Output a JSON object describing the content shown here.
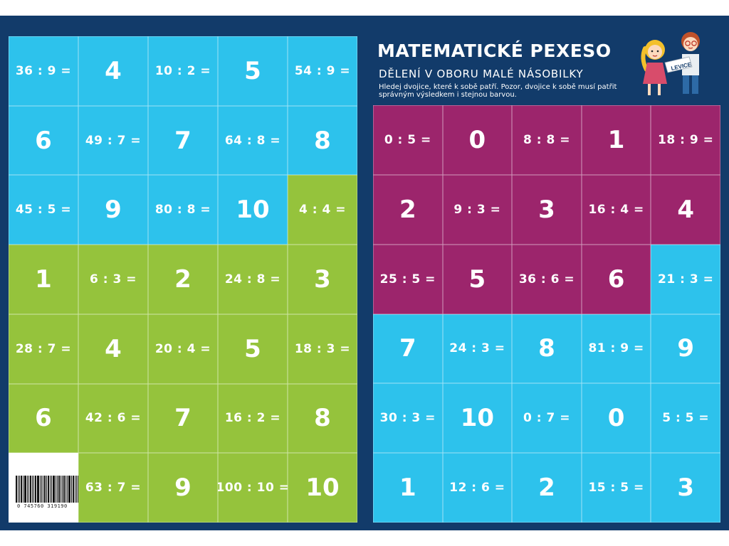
{
  "header": {
    "title": "MATEMATICKÉ PEXESO",
    "subtitle": "DĚLENÍ V OBORU MALÉ NÁSOBILKY",
    "instructions": "Hledej dvojice, které k sobě patří. Pozor, dvojice k sobě musí patřit správným výsledkem i stejnou barvou.",
    "sign_text": "LEVICE"
  },
  "colors": {
    "background": "#123b6a",
    "blue": "#2dc2ec",
    "green": "#95c33c",
    "purple": "#9c256c",
    "text": "#ffffff"
  },
  "barcode": {
    "number": "0  745760  319190"
  },
  "left_cards": [
    {
      "text": "36 : 9 =",
      "color": "blue",
      "kind": "eq"
    },
    {
      "text": "4",
      "color": "blue",
      "kind": "num"
    },
    {
      "text": "10 : 2 =",
      "color": "blue",
      "kind": "eq"
    },
    {
      "text": "5",
      "color": "blue",
      "kind": "num"
    },
    {
      "text": "54 : 9 =",
      "color": "blue",
      "kind": "eq"
    },
    {
      "text": "6",
      "color": "blue",
      "kind": "num"
    },
    {
      "text": "49 : 7 =",
      "color": "blue",
      "kind": "eq"
    },
    {
      "text": "7",
      "color": "blue",
      "kind": "num"
    },
    {
      "text": "64 : 8 =",
      "color": "blue",
      "kind": "eq"
    },
    {
      "text": "8",
      "color": "blue",
      "kind": "num"
    },
    {
      "text": "45 : 5 =",
      "color": "blue",
      "kind": "eq"
    },
    {
      "text": "9",
      "color": "blue",
      "kind": "num"
    },
    {
      "text": "80 : 8 =",
      "color": "blue",
      "kind": "eq"
    },
    {
      "text": "10",
      "color": "blue",
      "kind": "num"
    },
    {
      "text": "4 : 4 =",
      "color": "green",
      "kind": "eq"
    },
    {
      "text": "1",
      "color": "green",
      "kind": "num"
    },
    {
      "text": "6 : 3 =",
      "color": "green",
      "kind": "eq"
    },
    {
      "text": "2",
      "color": "green",
      "kind": "num"
    },
    {
      "text": "24 : 8 =",
      "color": "green",
      "kind": "eq"
    },
    {
      "text": "3",
      "color": "green",
      "kind": "num"
    },
    {
      "text": "28 : 7 =",
      "color": "green",
      "kind": "eq"
    },
    {
      "text": "4",
      "color": "green",
      "kind": "num"
    },
    {
      "text": "20 : 4 =",
      "color": "green",
      "kind": "eq"
    },
    {
      "text": "5",
      "color": "green",
      "kind": "num"
    },
    {
      "text": "18 : 3 =",
      "color": "green",
      "kind": "eq"
    },
    {
      "text": "6",
      "color": "green",
      "kind": "num"
    },
    {
      "text": "42 : 6 =",
      "color": "green",
      "kind": "eq"
    },
    {
      "text": "7",
      "color": "green",
      "kind": "num"
    },
    {
      "text": "16 : 2 =",
      "color": "green",
      "kind": "eq"
    },
    {
      "text": "8",
      "color": "green",
      "kind": "num"
    },
    {
      "text": "",
      "color": "barcode",
      "kind": "barcode"
    },
    {
      "text": "63 : 7 =",
      "color": "green",
      "kind": "eq"
    },
    {
      "text": "9",
      "color": "green",
      "kind": "num"
    },
    {
      "text": "100 : 10 =",
      "color": "green",
      "kind": "eq"
    },
    {
      "text": "10",
      "color": "green",
      "kind": "num"
    }
  ],
  "right_cards": [
    {
      "text": "0 : 5 =",
      "color": "purple",
      "kind": "eq"
    },
    {
      "text": "0",
      "color": "purple",
      "kind": "num"
    },
    {
      "text": "8 : 8 =",
      "color": "purple",
      "kind": "eq"
    },
    {
      "text": "1",
      "color": "purple",
      "kind": "num"
    },
    {
      "text": "18 : 9 =",
      "color": "purple",
      "kind": "eq"
    },
    {
      "text": "2",
      "color": "purple",
      "kind": "num"
    },
    {
      "text": "9 : 3 =",
      "color": "purple",
      "kind": "eq"
    },
    {
      "text": "3",
      "color": "purple",
      "kind": "num"
    },
    {
      "text": "16 : 4 =",
      "color": "purple",
      "kind": "eq"
    },
    {
      "text": "4",
      "color": "purple",
      "kind": "num"
    },
    {
      "text": "25 : 5 =",
      "color": "purple",
      "kind": "eq"
    },
    {
      "text": "5",
      "color": "purple",
      "kind": "num"
    },
    {
      "text": "36 : 6 =",
      "color": "purple",
      "kind": "eq"
    },
    {
      "text": "6",
      "color": "purple",
      "kind": "num"
    },
    {
      "text": "21 : 3 =",
      "color": "blue",
      "kind": "eq"
    },
    {
      "text": "7",
      "color": "blue",
      "kind": "num"
    },
    {
      "text": "24 : 3 =",
      "color": "blue",
      "kind": "eq"
    },
    {
      "text": "8",
      "color": "blue",
      "kind": "num"
    },
    {
      "text": "81 : 9 =",
      "color": "blue",
      "kind": "eq"
    },
    {
      "text": "9",
      "color": "blue",
      "kind": "num"
    },
    {
      "text": "30 : 3 =",
      "color": "blue",
      "kind": "eq"
    },
    {
      "text": "10",
      "color": "blue",
      "kind": "num"
    },
    {
      "text": "0 : 7 =",
      "color": "blue",
      "kind": "eq"
    },
    {
      "text": "0",
      "color": "blue",
      "kind": "num"
    },
    {
      "text": "5 : 5 =",
      "color": "blue",
      "kind": "eq"
    },
    {
      "text": "1",
      "color": "blue",
      "kind": "num"
    },
    {
      "text": "12 : 6 =",
      "color": "blue",
      "kind": "eq"
    },
    {
      "text": "2",
      "color": "blue",
      "kind": "num"
    },
    {
      "text": "15 : 5 =",
      "color": "blue",
      "kind": "eq"
    },
    {
      "text": "3",
      "color": "blue",
      "kind": "num"
    }
  ]
}
